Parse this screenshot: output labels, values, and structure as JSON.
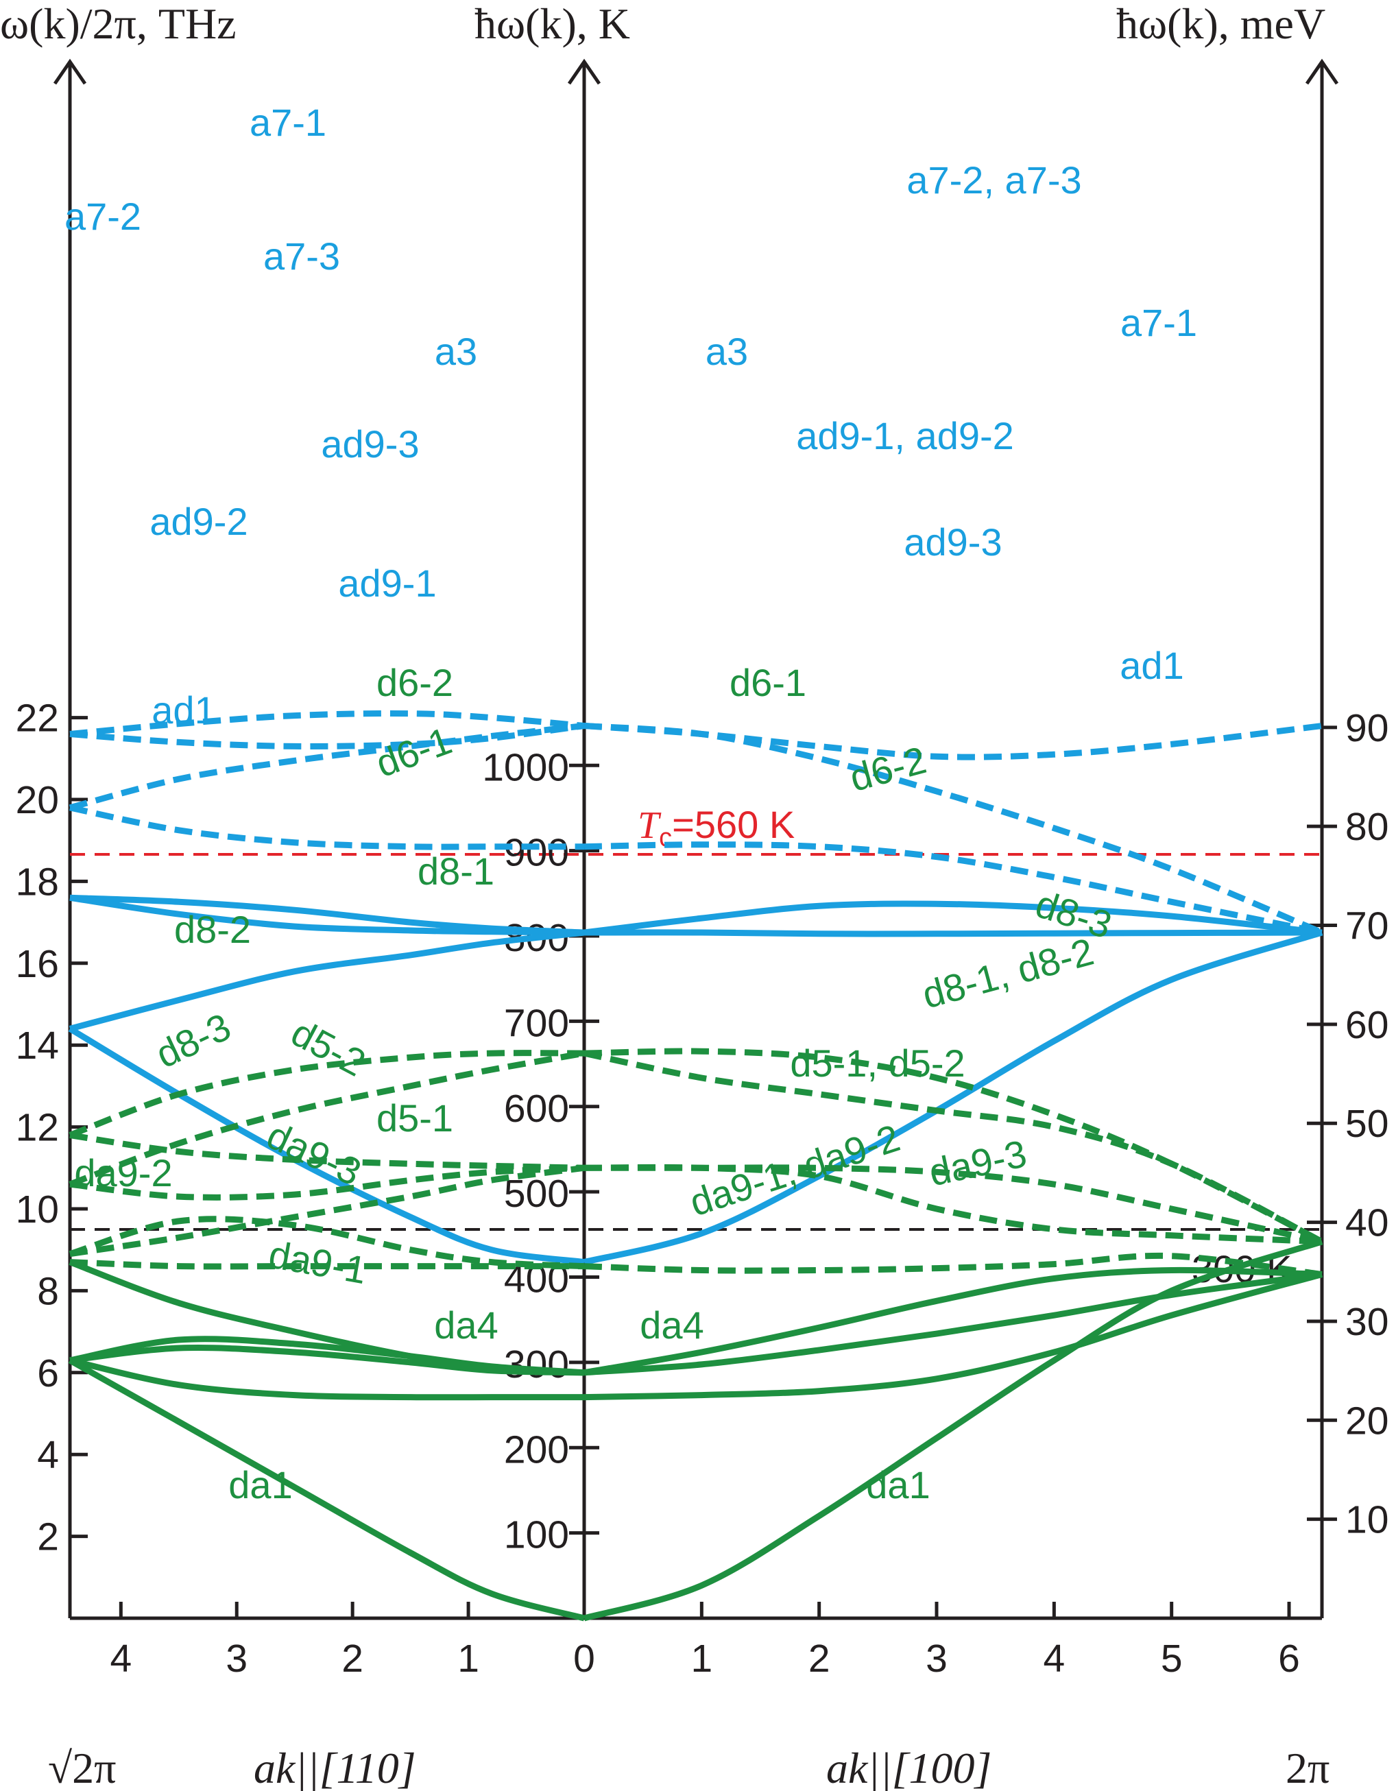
{
  "chart_data": {
    "type": "line",
    "title": "",
    "axes": {
      "left_label": "ω(k)/2π, THz",
      "center_label": "ħω(k), K",
      "right_label": "ħω(k), meV",
      "left_ylim": [
        0,
        23
      ],
      "left_ticks": [
        "2",
        "4",
        "6",
        "8",
        "10",
        "12",
        "14",
        "16",
        "18",
        "20",
        "22"
      ],
      "center_ticks": [
        "100",
        "200",
        "300",
        "400",
        "500",
        "600",
        "700",
        "800",
        "900",
        "1000"
      ],
      "right_ticks": [
        "10",
        "20",
        "30",
        "40",
        "50",
        "60",
        "70",
        "80",
        "90"
      ],
      "left_xticks": [
        "4",
        "3",
        "2",
        "1",
        "0"
      ],
      "right_xticks": [
        "1",
        "2",
        "3",
        "4",
        "5",
        "6"
      ],
      "bottom_left": "√2π",
      "bottom_center_left": "ak||[110]",
      "bottom_center_right": "ak||[100]",
      "bottom_right": "2π"
    },
    "reference_lines": [
      {
        "label_italic": "T",
        "label_sub": "c",
        "label_rest": "=560 K",
        "value_K": 560,
        "color": "#e3242b",
        "style": "dashed"
      },
      {
        "label": "300 K",
        "value_K": 300,
        "color": "#231f20",
        "style": "dashed"
      }
    ],
    "colors": {
      "acoustic": "#1a9fdf",
      "distortion": "#1e9040"
    },
    "branches_110": [
      {
        "name": "a7-1",
        "style": "dashed",
        "color": "acoustic",
        "x": [
          4.44,
          3.5,
          2.5,
          1.5,
          0.8,
          0
        ],
        "y": [
          21.6,
          21.85,
          22.05,
          22.1,
          22.0,
          21.8
        ]
      },
      {
        "name": "a7-2",
        "style": "dashed",
        "color": "acoustic",
        "x": [
          4.44,
          3.5,
          2.5,
          1.5,
          0.8,
          0
        ],
        "y": [
          21.6,
          21.4,
          21.3,
          21.35,
          21.5,
          21.8
        ]
      },
      {
        "name": "a7-3",
        "style": "dashed",
        "color": "acoustic",
        "x": [
          4.44,
          3.5,
          2.5,
          1.5,
          0.8,
          0
        ],
        "y": [
          19.8,
          20.5,
          20.95,
          21.3,
          21.55,
          21.8
        ]
      },
      {
        "name": "a3",
        "style": "dashed",
        "color": "acoustic",
        "x": [
          4.44,
          3.5,
          2.5,
          1.5,
          0.8,
          0
        ],
        "y": [
          19.8,
          19.25,
          18.95,
          18.85,
          18.85,
          18.85
        ]
      },
      {
        "name": "ad9-3",
        "style": "solid",
        "color": "acoustic",
        "x": [
          4.44,
          3.5,
          2.5,
          1.5,
          0.8,
          0
        ],
        "y": [
          17.6,
          17.5,
          17.3,
          17.0,
          16.85,
          16.75
        ]
      },
      {
        "name": "ad9-2",
        "style": "solid",
        "color": "acoustic",
        "x": [
          4.44,
          3.5,
          2.5,
          1.5,
          0.8,
          0
        ],
        "y": [
          17.6,
          17.2,
          16.9,
          16.8,
          16.77,
          16.75
        ]
      },
      {
        "name": "ad9-1",
        "style": "solid",
        "color": "acoustic",
        "x": [
          4.44,
          3.5,
          2.5,
          1.5,
          0.8,
          0
        ],
        "y": [
          14.4,
          15.1,
          15.8,
          16.2,
          16.5,
          16.75
        ]
      },
      {
        "name": "ad1",
        "style": "solid",
        "color": "acoustic",
        "x": [
          4.44,
          3.5,
          2.5,
          1.5,
          0.8,
          0
        ],
        "y": [
          14.4,
          12.8,
          11.2,
          9.8,
          9.0,
          8.7
        ]
      },
      {
        "name": "d6-2",
        "style": "dashed",
        "color": "distortion",
        "x": [
          4.44,
          3.5,
          2.5,
          1.5,
          0.8,
          0
        ],
        "y": [
          11.8,
          12.8,
          13.4,
          13.7,
          13.8,
          13.8
        ]
      },
      {
        "name": "d6-1",
        "style": "dashed",
        "color": "distortion",
        "x": [
          4.44,
          3.5,
          2.5,
          1.5,
          0.8,
          0
        ],
        "y": [
          10.6,
          11.6,
          12.4,
          13.0,
          13.4,
          13.8
        ]
      },
      {
        "name": "d8-1",
        "style": "dashed",
        "color": "distortion",
        "x": [
          4.44,
          3.5,
          2.5,
          1.5,
          0.8,
          0
        ],
        "y": [
          11.8,
          11.4,
          11.2,
          11.1,
          11.05,
          11.0
        ]
      },
      {
        "name": "d8-2",
        "style": "dashed",
        "color": "distortion",
        "x": [
          4.44,
          3.5,
          2.5,
          1.5,
          0.8,
          0
        ],
        "y": [
          10.6,
          10.3,
          10.35,
          10.7,
          10.9,
          11.0
        ]
      },
      {
        "name": "d8-3",
        "style": "dashed",
        "color": "distortion",
        "x": [
          4.44,
          3.5,
          2.5,
          1.5,
          0.8,
          0
        ],
        "y": [
          8.9,
          9.3,
          9.8,
          10.3,
          10.7,
          11.0
        ]
      },
      {
        "name": "d5-2",
        "style": "dashed",
        "color": "distortion",
        "x": [
          4.44,
          3.5,
          2.5,
          1.5,
          0.8,
          0
        ],
        "y": [
          8.9,
          9.7,
          9.6,
          9.0,
          8.7,
          8.6
        ]
      },
      {
        "name": "d5-1",
        "style": "dashed",
        "color": "distortion",
        "x": [
          4.44,
          3.5,
          2.5,
          1.5,
          0.8,
          0
        ],
        "y": [
          8.7,
          8.6,
          8.6,
          8.6,
          8.6,
          8.6
        ]
      },
      {
        "name": "da9-3",
        "style": "solid",
        "color": "distortion",
        "x": [
          4.44,
          3.5,
          2.5,
          1.5,
          0.8,
          0
        ],
        "y": [
          8.7,
          7.7,
          7.0,
          6.4,
          6.1,
          6.0
        ]
      },
      {
        "name": "da9-2",
        "style": "solid",
        "color": "distortion",
        "x": [
          4.44,
          3.5,
          2.5,
          1.5,
          0.8,
          0
        ],
        "y": [
          6.3,
          6.8,
          6.7,
          6.4,
          6.15,
          6.0
        ]
      },
      {
        "name": "da9-1",
        "style": "solid",
        "color": "distortion",
        "x": [
          4.44,
          3.5,
          2.5,
          1.5,
          0.8,
          0
        ],
        "y": [
          6.3,
          6.6,
          6.5,
          6.25,
          6.05,
          6.0
        ]
      },
      {
        "name": "da4",
        "style": "solid",
        "color": "distortion",
        "x": [
          4.44,
          3.5,
          2.5,
          1.5,
          0.8,
          0
        ],
        "y": [
          6.3,
          5.7,
          5.45,
          5.4,
          5.4,
          5.4
        ]
      },
      {
        "name": "da1",
        "style": "solid",
        "color": "distortion",
        "x": [
          4.44,
          3.5,
          2.5,
          1.5,
          0.8,
          0
        ],
        "y": [
          6.3,
          4.8,
          3.2,
          1.6,
          0.6,
          0.0
        ]
      }
    ],
    "branches_100": [
      {
        "name": "a7-2, a7-3",
        "style": "dashed",
        "color": "acoustic",
        "x": [
          0,
          1,
          2,
          3,
          4,
          5,
          6.28
        ],
        "y": [
          21.8,
          21.6,
          21.3,
          21.05,
          21.1,
          21.35,
          21.8
        ]
      },
      {
        "name": "a7-1",
        "style": "dashed",
        "color": "acoustic",
        "x": [
          0,
          1,
          2,
          3,
          4,
          5,
          6.28
        ],
        "y": [
          21.8,
          21.6,
          21.0,
          20.2,
          19.3,
          18.3,
          16.75
        ]
      },
      {
        "name": "a3",
        "style": "dashed",
        "color": "acoustic",
        "x": [
          0,
          1,
          2,
          3,
          4,
          5,
          6.28
        ],
        "y": [
          18.85,
          18.9,
          18.85,
          18.6,
          18.1,
          17.5,
          16.75
        ]
      },
      {
        "name": "ad9-1, ad9-2",
        "style": "solid",
        "color": "acoustic",
        "x": [
          0,
          1,
          2,
          3,
          4,
          5,
          6.28
        ],
        "y": [
          16.75,
          17.1,
          17.4,
          17.45,
          17.35,
          17.15,
          16.75
        ]
      },
      {
        "name": "ad9-3",
        "style": "solid",
        "color": "acoustic",
        "x": [
          0,
          1,
          2,
          3,
          4,
          5,
          6.28
        ],
        "y": [
          16.75,
          16.75,
          16.72,
          16.72,
          16.73,
          16.74,
          16.75
        ]
      },
      {
        "name": "ad1",
        "style": "solid",
        "color": "acoustic",
        "x": [
          0,
          1,
          2,
          3,
          4,
          5,
          6.28
        ],
        "y": [
          8.7,
          9.4,
          10.8,
          12.4,
          14.1,
          15.6,
          16.75
        ]
      },
      {
        "name": "d6-1",
        "style": "dashed",
        "color": "distortion",
        "x": [
          0,
          1,
          2,
          3,
          4,
          5,
          6.28
        ],
        "y": [
          13.8,
          13.85,
          13.7,
          13.2,
          12.3,
          11.1,
          9.2
        ]
      },
      {
        "name": "d6-2",
        "style": "dashed",
        "color": "distortion",
        "x": [
          0,
          1,
          2,
          3,
          4,
          5,
          6.28
        ],
        "y": [
          13.8,
          13.2,
          12.8,
          12.4,
          12.0,
          11.1,
          9.2
        ]
      },
      {
        "name": "d8-3",
        "style": "dashed",
        "color": "distortion",
        "x": [
          0,
          1,
          2,
          3,
          4,
          5,
          6.28
        ],
        "y": [
          11.0,
          11.0,
          11.0,
          10.9,
          10.6,
          10.0,
          9.2
        ]
      },
      {
        "name": "d8-1, d8-2",
        "style": "dashed",
        "color": "distortion",
        "x": [
          0,
          1,
          2,
          3,
          4,
          5,
          6.28
        ],
        "y": [
          11.0,
          11.0,
          10.8,
          10.0,
          9.5,
          9.35,
          9.2
        ]
      },
      {
        "name": "d5-1, d5-2",
        "style": "dashed",
        "color": "distortion",
        "x": [
          0,
          1,
          2,
          3,
          4,
          5,
          6.28
        ],
        "y": [
          8.6,
          8.5,
          8.5,
          8.55,
          8.65,
          8.85,
          8.4
        ]
      },
      {
        "name": "da9-1, da9-2",
        "style": "solid",
        "color": "distortion",
        "x": [
          0,
          1,
          2,
          3,
          4,
          5,
          6.28
        ],
        "y": [
          6.0,
          6.5,
          7.1,
          7.75,
          8.3,
          8.5,
          8.4
        ]
      },
      {
        "name": "da9-3",
        "style": "solid",
        "color": "distortion",
        "x": [
          0,
          1,
          2,
          3,
          4,
          5,
          6.28
        ],
        "y": [
          6.0,
          6.2,
          6.55,
          6.95,
          7.4,
          7.9,
          8.4
        ]
      },
      {
        "name": "da4",
        "style": "solid",
        "color": "distortion",
        "x": [
          0,
          1,
          2,
          3,
          4,
          5,
          6.28
        ],
        "y": [
          5.4,
          5.45,
          5.55,
          5.85,
          6.5,
          7.4,
          8.4
        ]
      },
      {
        "name": "da1",
        "style": "solid",
        "color": "distortion",
        "x": [
          0,
          1,
          2,
          3,
          4,
          5,
          6.28
        ],
        "y": [
          0.0,
          0.8,
          2.5,
          4.4,
          6.3,
          8.0,
          9.2
        ]
      }
    ],
    "branch_labels": [
      {
        "text": "a7-1",
        "color": "acoustic"
      },
      {
        "text": "a7-2",
        "color": "acoustic"
      },
      {
        "text": "a7-3",
        "color": "acoustic"
      },
      {
        "text": "a3",
        "color": "acoustic"
      },
      {
        "text": "a3",
        "color": "acoustic"
      },
      {
        "text": "a7-2, a7-3",
        "color": "acoustic"
      },
      {
        "text": "a7-1",
        "color": "acoustic"
      },
      {
        "text": "ad9-3",
        "color": "acoustic"
      },
      {
        "text": "ad9-2",
        "color": "acoustic"
      },
      {
        "text": "ad9-1",
        "color": "acoustic"
      },
      {
        "text": "ad9-1, ad9-2",
        "color": "acoustic"
      },
      {
        "text": "ad9-3",
        "color": "acoustic"
      },
      {
        "text": "ad1",
        "color": "acoustic"
      },
      {
        "text": "ad1",
        "color": "acoustic"
      },
      {
        "text": "d6-2",
        "color": "distortion"
      },
      {
        "text": "d6-1",
        "color": "distortion"
      },
      {
        "text": "d6-1",
        "color": "distortion"
      },
      {
        "text": "d6-2",
        "color": "distortion"
      },
      {
        "text": "d8-1",
        "color": "distortion"
      },
      {
        "text": "d8-2",
        "color": "distortion"
      },
      {
        "text": "d8-3",
        "color": "distortion"
      },
      {
        "text": "d8-1, d8-2",
        "color": "distortion"
      },
      {
        "text": "d8-3",
        "color": "distortion"
      },
      {
        "text": "d5-2",
        "color": "distortion"
      },
      {
        "text": "d5-1",
        "color": "distortion"
      },
      {
        "text": "d5-1, d5-2",
        "color": "distortion"
      },
      {
        "text": "da9-2",
        "color": "distortion"
      },
      {
        "text": "da9-3",
        "color": "distortion"
      },
      {
        "text": "da9-1",
        "color": "distortion"
      },
      {
        "text": "da9-1, da9-2",
        "color": "distortion"
      },
      {
        "text": "da9-3",
        "color": "distortion"
      },
      {
        "text": "da4",
        "color": "distortion"
      },
      {
        "text": "da4",
        "color": "distortion"
      },
      {
        "text": "da1",
        "color": "distortion"
      },
      {
        "text": "da1",
        "color": "distortion"
      }
    ]
  }
}
